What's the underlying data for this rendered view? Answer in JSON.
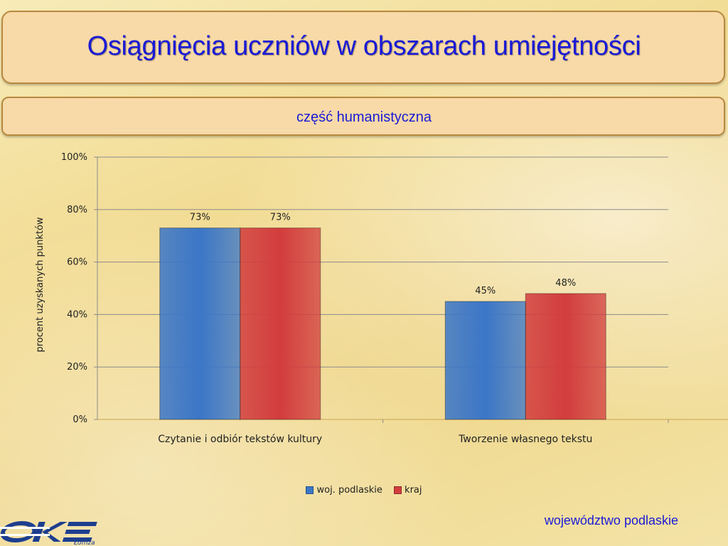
{
  "header": {
    "title": "Osiągnięcia uczniów w obszarach umiejętności",
    "subtitle": "część humanistyczna"
  },
  "footer": {
    "region": "województwo podlaskie"
  },
  "logo": {
    "text": "Łomża"
  },
  "colors": {
    "series1": "#3b76c7",
    "series2": "#d23d3d",
    "title": "#1a1ad6"
  },
  "chart_data": {
    "type": "bar",
    "categories": [
      "Czytanie i odbiór tekstów kultury",
      "Tworzenie własnego tekstu"
    ],
    "series": [
      {
        "name": "woj. podlaskie",
        "values": [
          73,
          45
        ],
        "labels": [
          "73%",
          "45%"
        ],
        "color": "#3b76c7"
      },
      {
        "name": "kraj",
        "values": [
          73,
          48
        ],
        "labels": [
          "73%",
          "48%"
        ],
        "color": "#d23d3d"
      }
    ],
    "ylabel": "procent uzyskanych punktów",
    "ylim": [
      0,
      100
    ],
    "yticks": [
      "0%",
      "20%",
      "40%",
      "60%",
      "80%",
      "100%"
    ],
    "grid": true,
    "legend_position": "bottom"
  }
}
